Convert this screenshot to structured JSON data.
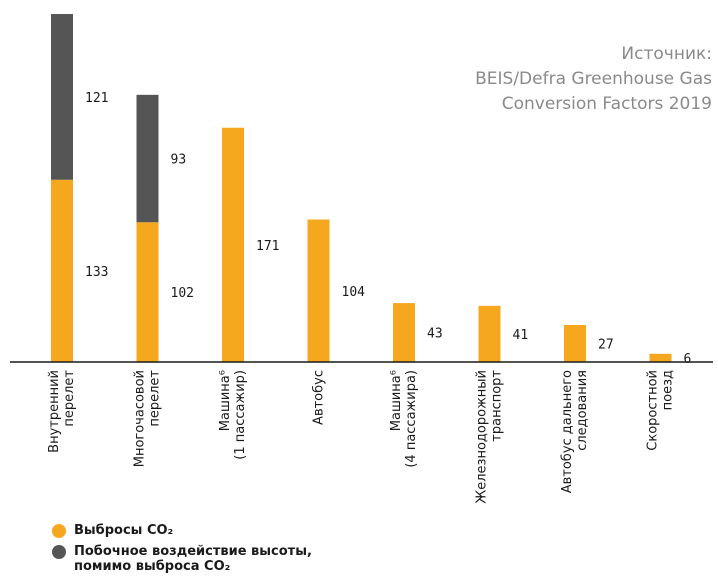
{
  "source_note": "Источник:\nBEIS/Defra Greenhouse Gas\nConversion Factors 2019",
  "colors": {
    "co2": "#F5A81E",
    "altitude": "#555555",
    "axis": "#1a1a1a"
  },
  "legend": {
    "items": [
      {
        "label": "Выбросы CO₂",
        "color": "#F5A81E"
      },
      {
        "label": "Побочное воздействие высоты,\nпомимо выброса CO₂",
        "color": "#555555"
      }
    ]
  },
  "chart_data": {
    "type": "bar",
    "stacked": true,
    "categories": [
      [
        "Внутренний",
        "перелет"
      ],
      [
        "Многочасовой",
        "перелет"
      ],
      [
        "Машина⁶",
        "(1 пассажир)"
      ],
      [
        "Автобус"
      ],
      [
        "Машина⁶",
        "(4 пассажира)"
      ],
      [
        "Железнодорожный",
        "транспорт"
      ],
      [
        "Автобус дальнего",
        "следования"
      ],
      [
        "Скоростной",
        "поезд"
      ]
    ],
    "series": [
      {
        "name": "Выбросы CO₂",
        "color": "#F5A81E",
        "values": [
          133,
          102,
          171,
          104,
          43,
          41,
          27,
          6
        ]
      },
      {
        "name": "Побочное воздействие высоты, помимо выброса CO₂",
        "color": "#555555",
        "values": [
          121,
          93,
          0,
          0,
          0,
          0,
          0,
          0
        ]
      }
    ],
    "data_labels": [
      [
        133,
        121
      ],
      [
        102,
        93
      ],
      [
        171
      ],
      [
        104
      ],
      [
        43
      ],
      [
        41
      ],
      [
        27
      ],
      [
        6
      ]
    ],
    "ylim": [
      0,
      254
    ],
    "grid": false,
    "legend_position": "bottom-left"
  }
}
